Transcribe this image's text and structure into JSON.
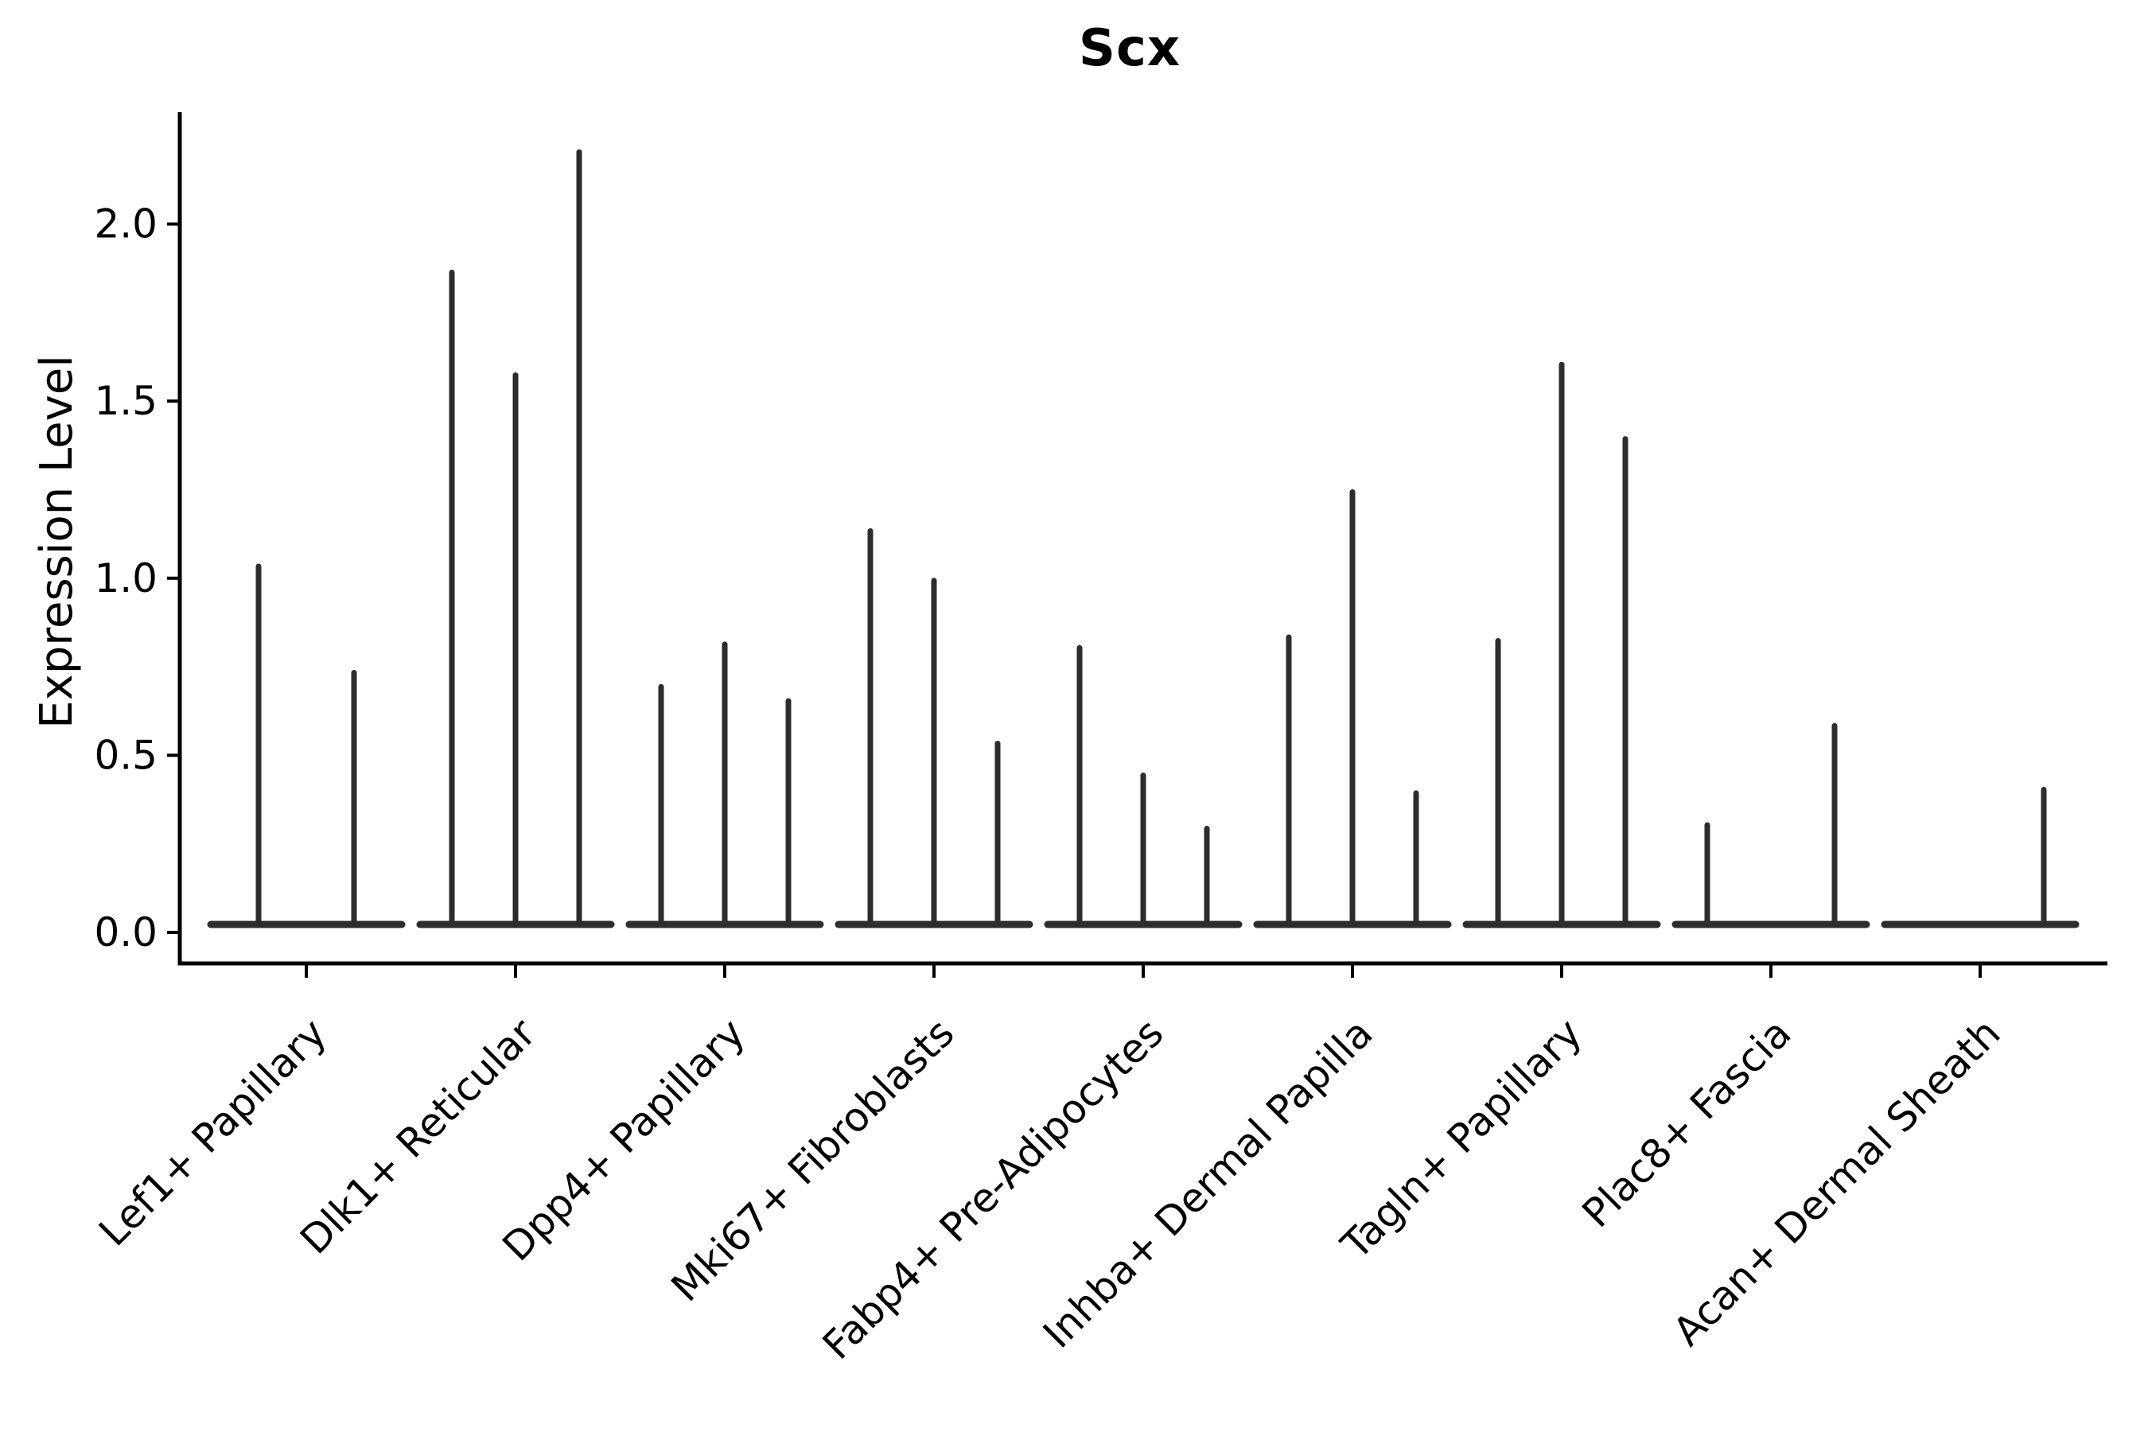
{
  "chart_data": {
    "type": "violin",
    "title": "Scx",
    "ylabel": "Expression Level",
    "xlabel": "",
    "legend": false,
    "grid": false,
    "background_color": "#ffffff",
    "axis_color": "#000000",
    "violin_color": "#2d2d2d",
    "ylim": [
      -0.09,
      2.31
    ],
    "ytick_values": [
      0.0,
      0.5,
      1.0,
      1.5,
      2.0
    ],
    "ytick_labels": [
      "0.0",
      "0.5",
      "1.0",
      "1.5",
      "2.0"
    ],
    "categories": [
      "Lef1+ Papillary",
      "Dlk1+ Reticular",
      "Dpp4+ Papillary",
      "Mki67+ Fibroblasts",
      "Fabp4+ Pre-Adipocytes",
      "Inhba+ Dermal Papilla",
      "Tagln+ Papillary",
      "Plac8+ Fascia",
      "Acan+ Dermal Sheath"
    ],
    "violin_max_expression_per_category": [
      [
        1.04,
        0.74
      ],
      [
        1.87,
        1.58,
        2.21
      ],
      [
        0.7,
        0.82,
        0.66
      ],
      [
        1.14,
        1.0,
        0.54
      ],
      [
        0.81,
        0.45,
        0.3
      ],
      [
        0.84,
        1.25,
        0.4
      ],
      [
        0.83,
        1.61,
        1.4
      ],
      [
        0.31,
        0.0,
        0.59
      ],
      [
        0.0,
        0.0,
        0.41
      ]
    ],
    "violin_body_value": 0.0
  }
}
